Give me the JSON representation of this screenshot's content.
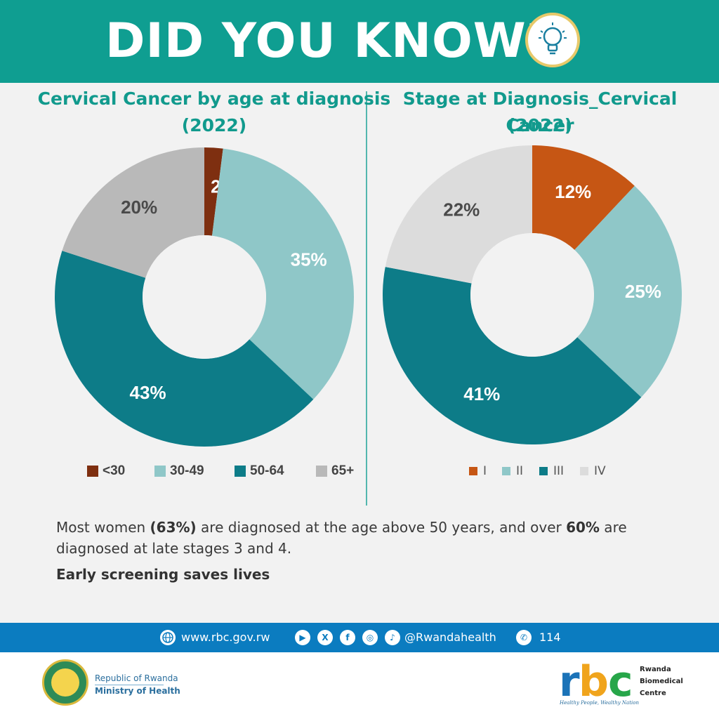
{
  "header": {
    "title": "DID YOU KNOW?",
    "icon": "lightbulb-icon"
  },
  "colors": {
    "teal_header": "#0f9e91",
    "blue_footer": "#0b7cc0"
  },
  "chart_data": [
    {
      "type": "pie",
      "title": "Cervical Cancer by age at diagnosis",
      "year": "(2022)",
      "categories": [
        "<30",
        "30-49",
        "50-64",
        "65+"
      ],
      "values": [
        2,
        35,
        43,
        20
      ],
      "labels": [
        "2%",
        "35%",
        "43%",
        "20%"
      ],
      "colors": [
        "#7e2f10",
        "#8fc7c8",
        "#0d7c88",
        "#b9b9b9"
      ],
      "label_colors": [
        "#ffffff",
        "#ffffff",
        "#ffffff",
        "#4a4a4a"
      ],
      "legend_position": "bottom"
    },
    {
      "type": "pie",
      "title": "Stage at Diagnosis_Cervical Cancer",
      "year": "(2022)",
      "categories": [
        "I",
        "II",
        "III",
        "IV"
      ],
      "values": [
        12,
        25,
        41,
        22
      ],
      "labels": [
        "12%",
        "25%",
        "41%",
        "22%"
      ],
      "colors": [
        "#c65614",
        "#8fc7c8",
        "#0d7c88",
        "#dcdcdc"
      ],
      "label_colors": [
        "#ffffff",
        "#ffffff",
        "#ffffff",
        "#4a4a4a"
      ],
      "legend_position": "bottom"
    }
  ],
  "summary": {
    "part1": "Most women ",
    "bold1": "(63%)",
    "part2": " are diagnosed at the age above 50 years, and over ",
    "bold2": "60%",
    "part3": " are diagnosed at late stages 3 and 4.",
    "cta": "Early screening saves lives"
  },
  "footer": {
    "website": "www.rbc.gov.rw",
    "handle": "@Rwandahealth",
    "phone": "114",
    "social_icons": [
      "youtube-icon",
      "x-icon",
      "facebook-icon",
      "instagram-icon",
      "tiktok-icon"
    ]
  },
  "bottom": {
    "ministry_line1": "Republic of Rwanda",
    "ministry_line2": "Ministry of Health",
    "rbc_logo_text": "rbc",
    "rbc_name": [
      "Rwanda",
      "Biomedical",
      "Centre"
    ],
    "rbc_tagline": "Healthy People, Wealthy Nation"
  }
}
